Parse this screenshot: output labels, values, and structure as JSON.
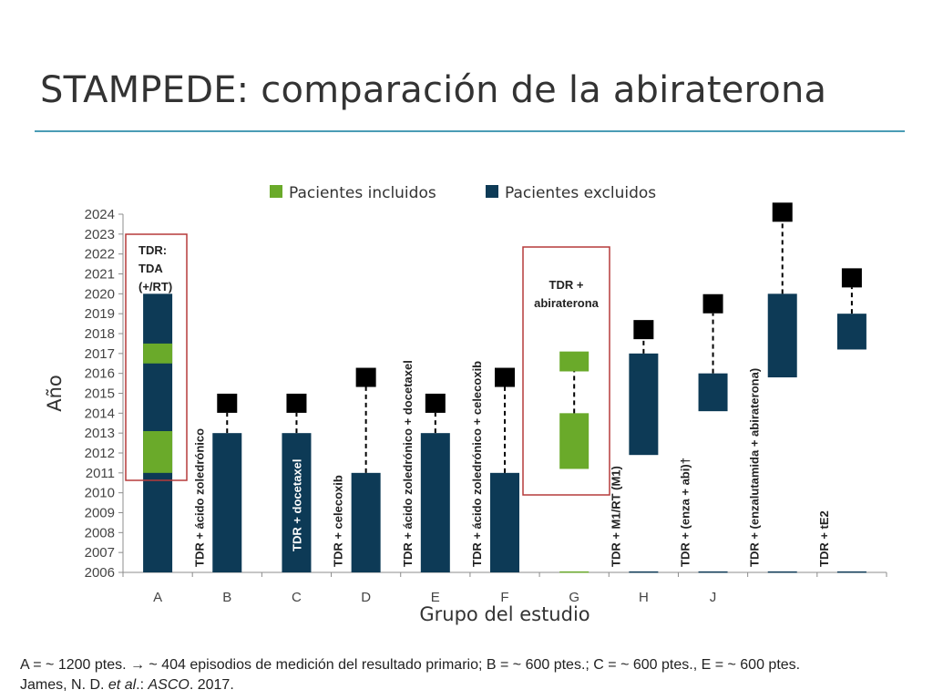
{
  "title": "STAMPEDE: comparación de la abiraterona",
  "footnote": {
    "line1": "A = ~ 1200 ptes. → ~ 404 episodios de medición del resultado primario; B = ~ 600 ptes.; C = ~ 600 ptes., E = ~ 600 ptes.",
    "line2_prefix": "James, N. D. ",
    "line2_italic1": "et al",
    "line2_mid": ".: ",
    "line2_italic2": "ASCO",
    "line2_suffix": ". 2017."
  },
  "colors": {
    "included": "#6aaa2a",
    "excluded": "#0d3a56",
    "highlight": "#b63a3a",
    "marker": "#000000",
    "axis": "#8c8c8c",
    "rule": "#4a9cb5"
  },
  "chart_data": {
    "type": "bar",
    "title": "",
    "xlabel": "Grupo del estudio",
    "ylabel": "Año",
    "ylim": [
      2006,
      2024
    ],
    "yticks": [
      2006,
      2007,
      2008,
      2009,
      2010,
      2011,
      2012,
      2013,
      2014,
      2015,
      2016,
      2017,
      2018,
      2019,
      2020,
      2021,
      2022,
      2023,
      2024
    ],
    "legend": {
      "placement": "top",
      "entries": [
        {
          "name": "Pacientes incluidos",
          "color": "#6aaa2a"
        },
        {
          "name": "Pacientes excluidos",
          "color": "#0d3a56"
        }
      ]
    },
    "groups": [
      {
        "category": "A",
        "label": "",
        "boxLabel": [
          "TDR:",
          "TDA",
          "(+/RT)"
        ],
        "highlight": true,
        "segments": [
          {
            "from": 2006,
            "to": 2020,
            "type": "excluded"
          },
          {
            "from": 2011,
            "to": 2013.1,
            "type": "included"
          },
          {
            "from": 2016.5,
            "to": 2017.5,
            "type": "included"
          }
        ]
      },
      {
        "category": "B",
        "label": "TDR + ácido zoledrónico",
        "segments": [
          {
            "from": 2006,
            "to": 2013,
            "type": "excluded"
          }
        ],
        "marker": 2014.5
      },
      {
        "category": "C",
        "label": "TDR + docetaxel",
        "labelInside": true,
        "segments": [
          {
            "from": 2006,
            "to": 2013,
            "type": "excluded"
          }
        ],
        "marker": 2014.5
      },
      {
        "category": "D",
        "label": "TDR + celecoxib",
        "segments": [
          {
            "from": 2006,
            "to": 2011,
            "type": "excluded"
          }
        ],
        "marker": 2015.8
      },
      {
        "category": "E",
        "label": "TDR + ácido zoledrónico + docetaxel",
        "segments": [
          {
            "from": 2006,
            "to": 2013,
            "type": "excluded"
          }
        ],
        "marker": 2014.5
      },
      {
        "category": "F",
        "label": "TDR + ácido zoledrónico + celecoxib",
        "segments": [
          {
            "from": 2006,
            "to": 2011,
            "type": "excluded"
          }
        ],
        "marker": 2015.8
      },
      {
        "category": "G",
        "label": "",
        "boxLabel": [
          "TDR +",
          "abiraterona"
        ],
        "highlight": true,
        "segments": [
          {
            "from": 2006,
            "to": 2006.05,
            "type": "included"
          },
          {
            "from": 2011.2,
            "to": 2014,
            "type": "included"
          },
          {
            "from": 2016.1,
            "to": 2017.1,
            "type": "included"
          }
        ],
        "dashFrom": 2014,
        "dashTo": 2016.1
      },
      {
        "category": "H",
        "label": "TDR + M1/RT (M1)",
        "segments": [
          {
            "from": 2006,
            "to": 2006.05,
            "type": "excluded"
          },
          {
            "from": 2011.9,
            "to": 2017,
            "type": "excluded"
          }
        ],
        "marker": 2018.2
      },
      {
        "category": "J",
        "label": "TDR + (enza + abi)†",
        "segments": [
          {
            "from": 2006,
            "to": 2006.05,
            "type": "excluded"
          },
          {
            "from": 2014.1,
            "to": 2016,
            "type": "excluded"
          }
        ],
        "marker": 2019.5
      },
      {
        "category": "",
        "label": "TDR + (enzalutamida + abiraterona)",
        "segments": [
          {
            "from": 2006,
            "to": 2006.05,
            "type": "excluded"
          },
          {
            "from": 2015.8,
            "to": 2020,
            "type": "excluded"
          }
        ],
        "marker": 2024.1
      },
      {
        "category": "",
        "label": "TDR + tE2",
        "segments": [
          {
            "from": 2006,
            "to": 2006.05,
            "type": "excluded"
          },
          {
            "from": 2017.2,
            "to": 2019,
            "type": "excluded"
          }
        ],
        "marker": 2020.8
      }
    ]
  }
}
